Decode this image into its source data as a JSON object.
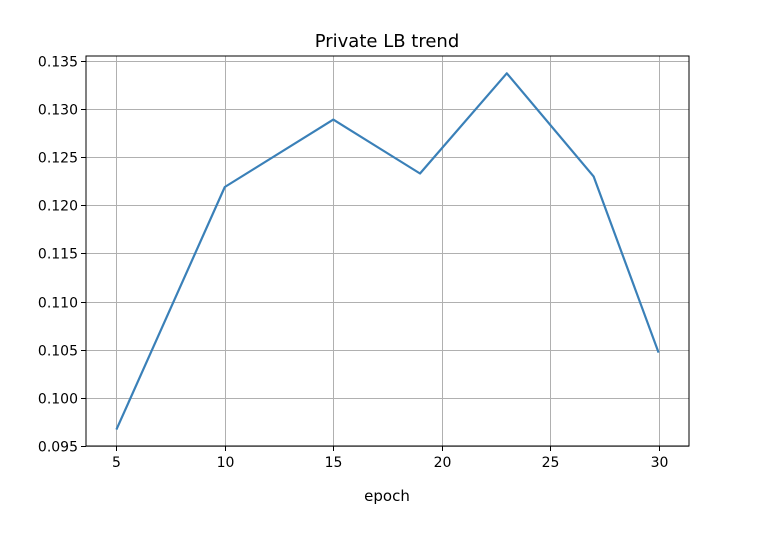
{
  "chart_data": {
    "type": "line",
    "title": "Private LB trend",
    "xlabel": "epoch",
    "ylabel": "",
    "xlim": [
      3.6,
      31.4
    ],
    "ylim": [
      0.095,
      0.1355
    ],
    "xticks": [
      5,
      10,
      15,
      20,
      25,
      30
    ],
    "xtick_labels": [
      "5",
      "10",
      "15",
      "20",
      "25",
      "30"
    ],
    "yticks": [
      0.095,
      0.1,
      0.105,
      0.11,
      0.115,
      0.12,
      0.125,
      0.13,
      0.135
    ],
    "ytick_labels": [
      "0.095",
      "0.100",
      "0.105",
      "0.110",
      "0.115",
      "0.120",
      "0.125",
      "0.130",
      "0.135"
    ],
    "grid": true,
    "series": [
      {
        "x": [
          5,
          10,
          15,
          19,
          23,
          27,
          30
        ],
        "y": [
          0.0967,
          0.1219,
          0.1289,
          0.1233,
          0.1337,
          0.123,
          0.1047
        ],
        "color": "#3a80b8"
      }
    ]
  }
}
